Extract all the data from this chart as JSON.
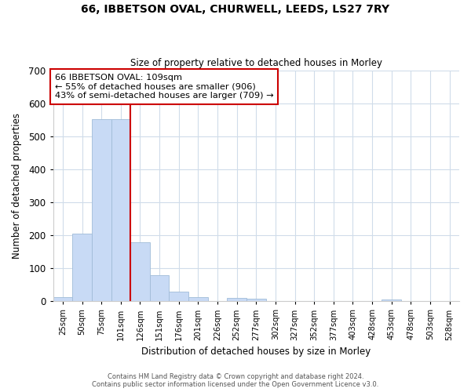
{
  "title": "66, IBBETSON OVAL, CHURWELL, LEEDS, LS27 7RY",
  "subtitle": "Size of property relative to detached houses in Morley",
  "xlabel": "Distribution of detached houses by size in Morley",
  "ylabel": "Number of detached properties",
  "bar_labels": [
    "25sqm",
    "50sqm",
    "75sqm",
    "101sqm",
    "126sqm",
    "151sqm",
    "176sqm",
    "201sqm",
    "226sqm",
    "252sqm",
    "277sqm",
    "302sqm",
    "327sqm",
    "352sqm",
    "377sqm",
    "403sqm",
    "428sqm",
    "453sqm",
    "478sqm",
    "503sqm",
    "528sqm"
  ],
  "bar_values": [
    12,
    205,
    552,
    552,
    178,
    78,
    30,
    12,
    0,
    10,
    7,
    0,
    0,
    0,
    0,
    0,
    0,
    5,
    0,
    0,
    0
  ],
  "bar_color": "#c8daf5",
  "bar_edge_color": "#a0bcd8",
  "marker_label": "66 IBBETSON OVAL: 109sqm",
  "annotation_line1": "← 55% of detached houses are smaller (906)",
  "annotation_line2": "43% of semi-detached houses are larger (709) →",
  "ylim": [
    0,
    700
  ],
  "yticks": [
    0,
    100,
    200,
    300,
    400,
    500,
    600,
    700
  ],
  "footnote1": "Contains HM Land Registry data © Crown copyright and database right 2024.",
  "footnote2": "Contains public sector information licensed under the Open Government Licence v3.0.",
  "marker_line_color": "#cc0000",
  "box_edge_color": "#cc0000",
  "background_color": "#ffffff",
  "grid_color": "#d0dcea",
  "marker_line_index": 3.5
}
